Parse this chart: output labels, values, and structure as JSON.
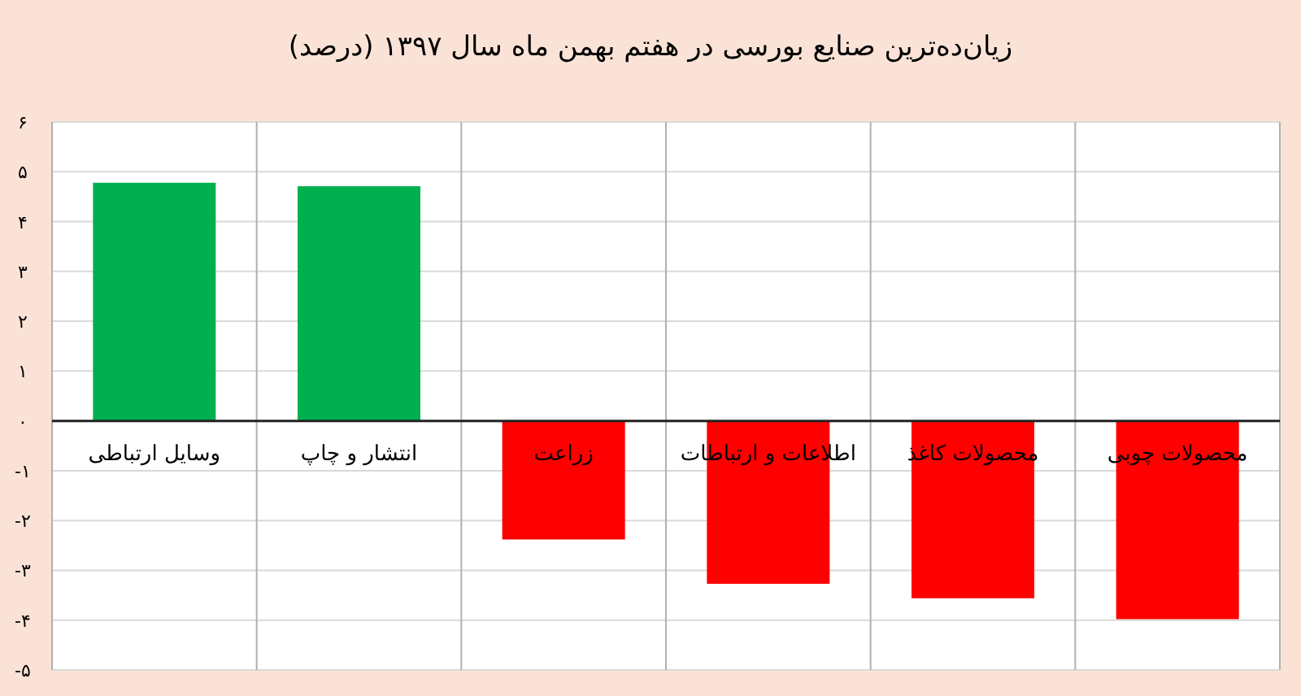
{
  "chart_data": {
    "type": "bar",
    "title": "زیان‌ده‌ترین صنایع بورسی در هفتم بهمن ماه سال ۱۳۹۷ (درصد)",
    "categories": [
      "وسایل ارتباطی",
      "انتشار و چاپ",
      "زراعت",
      "اطلاعات و ارتباطات",
      "محصولات کاغذ",
      "محصولات چوبی"
    ],
    "values": [
      4.78,
      4.71,
      -2.38,
      -3.27,
      -3.56,
      -3.98
    ],
    "colors": [
      "#00b050",
      "#00b050",
      "#ff0000",
      "#ff0000",
      "#ff0000",
      "#ff0000"
    ],
    "ylim": [
      -5,
      6
    ],
    "yticks": [
      {
        "value": 6,
        "label": "۶"
      },
      {
        "value": 5,
        "label": "۵"
      },
      {
        "value": 4,
        "label": "۴"
      },
      {
        "value": 3,
        "label": "۳"
      },
      {
        "value": 2,
        "label": "۲"
      },
      {
        "value": 1,
        "label": "۱"
      },
      {
        "value": 0,
        "label": "۰"
      },
      {
        "value": -1,
        "label": "-۱"
      },
      {
        "value": -2,
        "label": "-۲"
      },
      {
        "value": -3,
        "label": "-۳"
      },
      {
        "value": -4,
        "label": "-۴"
      },
      {
        "value": -5,
        "label": "-۵"
      }
    ],
    "grid": true
  }
}
